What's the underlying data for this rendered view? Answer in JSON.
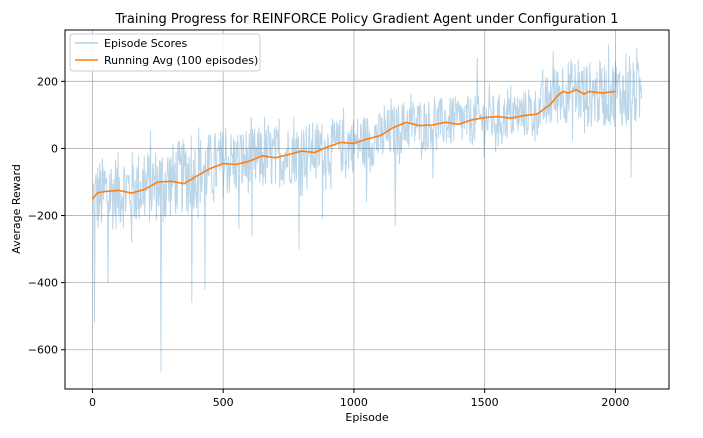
{
  "chart_data": {
    "type": "line",
    "title": "Training Progress for REINFORCE Policy Gradient Agent under Configuration 1",
    "xlabel": "Episode",
    "ylabel": "Average Reward",
    "xlim": [
      -105,
      2205
    ],
    "ylim": [
      -717,
      353
    ],
    "xticks": [
      0,
      500,
      1000,
      1500,
      2000
    ],
    "xtick_labels": [
      "0",
      "500",
      "1000",
      "1500",
      "2000"
    ],
    "yticks": [
      -600,
      -400,
      -200,
      0,
      200
    ],
    "ytick_labels": [
      "−600",
      "−400",
      "−200",
      "0",
      "200"
    ],
    "grid": true,
    "legend_position": "top-left",
    "series": [
      {
        "name": "Episode Scores",
        "color": "#1f77b4",
        "alpha": 0.3,
        "x": [
          0,
          100,
          200,
          300,
          400,
          500,
          600,
          700,
          800,
          900,
          1000,
          1100,
          1200,
          1300,
          1400,
          1500,
          1600,
          1700,
          1800,
          1900,
          2000,
          2100
        ],
        "center": [
          -150,
          -125,
          -115,
          -95,
          -70,
          -45,
          -35,
          -25,
          -10,
          0,
          15,
          30,
          70,
          75,
          80,
          85,
          95,
          110,
          175,
          160,
          165,
          160
        ],
        "spread": [
          120,
          115,
          115,
          115,
          110,
          105,
          100,
          95,
          90,
          85,
          85,
          80,
          80,
          75,
          75,
          75,
          70,
          75,
          100,
          100,
          100,
          100
        ],
        "outliers": [
          [
            8,
            -520
          ],
          [
            60,
            -400
          ],
          [
            150,
            -280
          ],
          [
            215,
            -540
          ],
          [
            262,
            -665
          ],
          [
            305,
            -350
          ],
          [
            380,
            -460
          ],
          [
            395,
            -180
          ],
          [
            425,
            -470
          ],
          [
            430,
            -420
          ],
          [
            505,
            -300
          ],
          [
            560,
            -240
          ],
          [
            610,
            -260
          ],
          [
            655,
            -370
          ],
          [
            790,
            -300
          ],
          [
            880,
            -210
          ],
          [
            965,
            -250
          ],
          [
            1048,
            -160
          ],
          [
            1158,
            -230
          ],
          [
            1302,
            -90
          ],
          [
            1385,
            210
          ],
          [
            1472,
            270
          ],
          [
            1542,
            -10
          ],
          [
            1635,
            -10
          ],
          [
            1675,
            255
          ],
          [
            1762,
            290
          ],
          [
            1882,
            45
          ],
          [
            1923,
            300
          ],
          [
            2000,
            260
          ],
          [
            2095,
            290
          ],
          [
            2060,
            -85
          ]
        ]
      },
      {
        "name": "Running Avg (100 episodes)",
        "color": "#ff7f0e",
        "x": [
          0,
          20,
          50,
          100,
          150,
          200,
          250,
          300,
          350,
          400,
          450,
          500,
          550,
          600,
          650,
          700,
          750,
          800,
          850,
          900,
          950,
          1000,
          1050,
          1100,
          1150,
          1200,
          1250,
          1300,
          1350,
          1400,
          1450,
          1500,
          1550,
          1600,
          1650,
          1700,
          1750,
          1780,
          1800,
          1820,
          1850,
          1880,
          1900,
          1950,
          2000
        ],
        "y": [
          -150,
          -132,
          -128,
          -125,
          -133,
          -122,
          -100,
          -98,
          -105,
          -82,
          -60,
          -45,
          -48,
          -38,
          -22,
          -28,
          -18,
          -8,
          -12,
          5,
          18,
          15,
          28,
          38,
          62,
          78,
          68,
          70,
          78,
          72,
          85,
          92,
          95,
          90,
          98,
          102,
          130,
          158,
          170,
          165,
          175,
          162,
          170,
          165,
          170
        ]
      }
    ]
  }
}
